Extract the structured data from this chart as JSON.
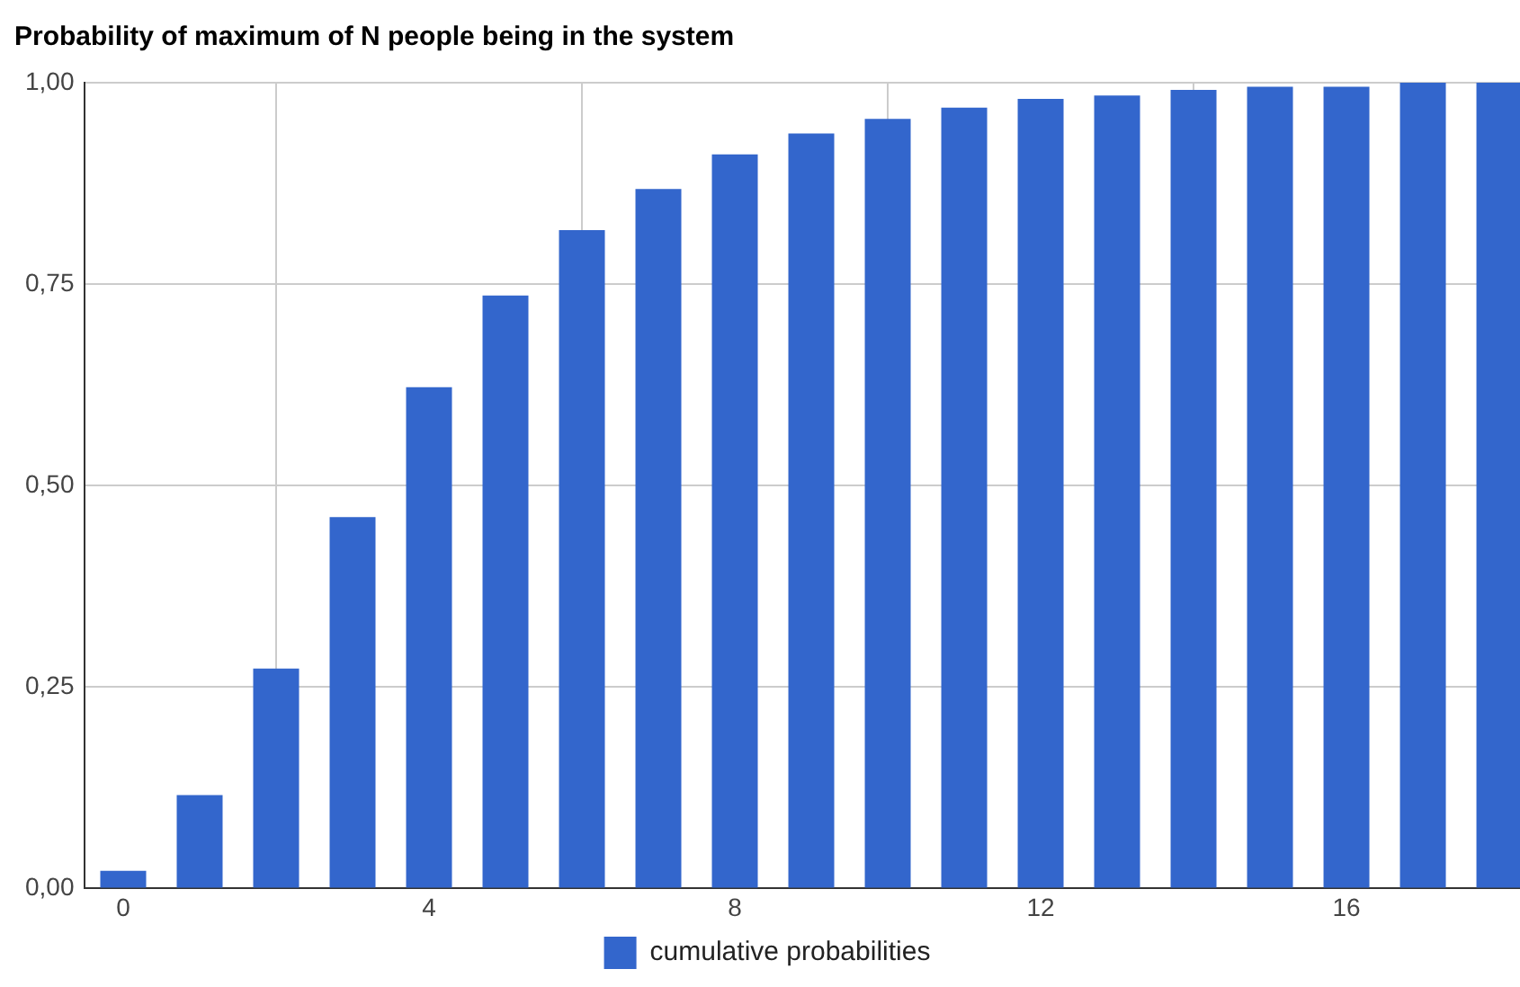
{
  "chart_data": {
    "type": "bar",
    "title": "Probability of maximum of N people being in the system",
    "x": [
      0,
      1,
      2,
      3,
      4,
      5,
      6,
      7,
      8,
      9,
      10,
      11,
      12,
      13,
      14,
      15,
      16,
      17,
      18
    ],
    "series": [
      {
        "name": "cumulative probabilities",
        "color": "#3366cc",
        "values": [
          0.022,
          0.116,
          0.273,
          0.461,
          0.622,
          0.736,
          0.817,
          0.868,
          0.911,
          0.937,
          0.955,
          0.969,
          0.98,
          0.984,
          0.991,
          0.995,
          0.995,
          1.0,
          1.0
        ]
      }
    ],
    "xlim": [
      -0.5,
      18.27
    ],
    "xticks": [
      0,
      4,
      8,
      12,
      16
    ],
    "ylim": [
      0,
      1
    ],
    "yticks": [
      {
        "value": 0,
        "label": "0,00"
      },
      {
        "value": 0.25,
        "label": "0,25"
      },
      {
        "value": 0.5,
        "label": "0,50"
      },
      {
        "value": 0.75,
        "label": "0,75"
      },
      {
        "value": 1,
        "label": "1,00"
      }
    ],
    "grid": true,
    "legend": "bottom"
  }
}
